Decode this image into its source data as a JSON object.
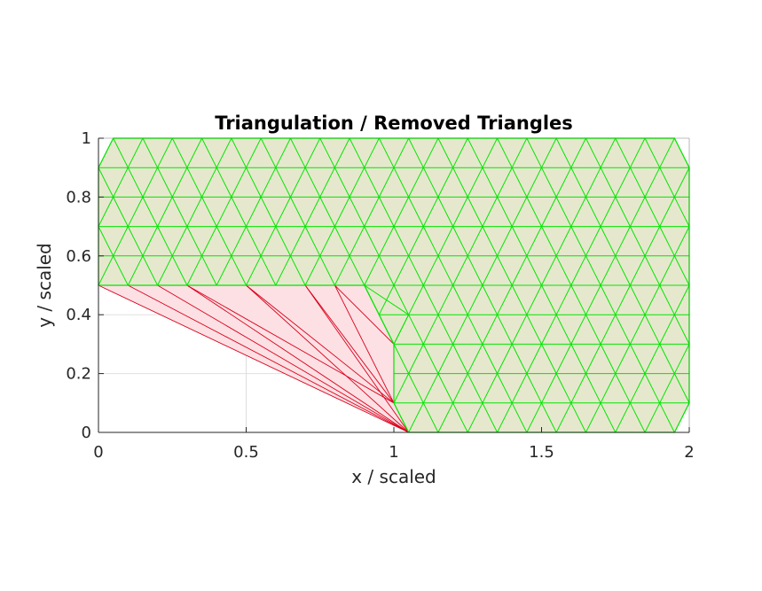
{
  "chart_data": {
    "type": "triangulation",
    "title": "Triangulation / Removed Triangles",
    "xlabel": "x / scaled",
    "ylabel": "y / scaled",
    "xlim": [
      0,
      2
    ],
    "ylim": [
      0,
      1
    ],
    "xticks": [
      0,
      0.5,
      1,
      1.5,
      2
    ],
    "xtick_labels": [
      "0",
      "0.5",
      "1",
      "1.5",
      "2"
    ],
    "yticks": [
      0,
      0.2,
      0.4,
      0.6,
      0.8,
      1
    ],
    "ytick_labels": [
      "0",
      "0.2",
      "0.4",
      "0.6",
      "0.8",
      "1"
    ],
    "grid": true,
    "mesh": {
      "row_spacing": 0.1,
      "triangle_width": 0.1,
      "kept_region_color": "#e6e8cd",
      "kept_edge_color": "#00e600",
      "removed_region_color": "#fde0e4",
      "removed_edge_color": "#d9001b"
    },
    "kept_polygon": [
      [
        0,
        0.5
      ],
      [
        0,
        0.9
      ],
      [
        0.05,
        1.0
      ],
      [
        1.95,
        1.0
      ],
      [
        2.0,
        0.9
      ],
      [
        2.0,
        0.1
      ],
      [
        1.95,
        0.0
      ],
      [
        1.05,
        0.0
      ],
      [
        1.0,
        0.1
      ],
      [
        1.0,
        0.3
      ],
      [
        0.9,
        0.5
      ]
    ],
    "removed_fans": [
      {
        "apex": [
          1.05,
          0.0
        ],
        "from": [
          [
            0,
            0.5
          ],
          [
            0.1,
            0.5
          ],
          [
            0.2,
            0.5
          ],
          [
            0.3,
            0.5
          ],
          [
            0.5,
            0.5
          ],
          [
            0.7,
            0.5
          ]
        ]
      },
      {
        "apex": [
          1.0,
          0.1
        ],
        "from": [
          [
            0.3,
            0.5
          ],
          [
            0.5,
            0.5
          ],
          [
            0.7,
            0.5
          ],
          [
            0.8,
            0.5
          ]
        ]
      },
      {
        "apex": [
          1.0,
          0.3
        ],
        "from": [
          [
            0.8,
            0.5
          ]
        ]
      }
    ],
    "removed_polygon": [
      [
        0,
        0.5
      ],
      [
        0.9,
        0.5
      ],
      [
        1.0,
        0.3
      ],
      [
        1.0,
        0.1
      ],
      [
        1.05,
        0.0
      ]
    ]
  }
}
